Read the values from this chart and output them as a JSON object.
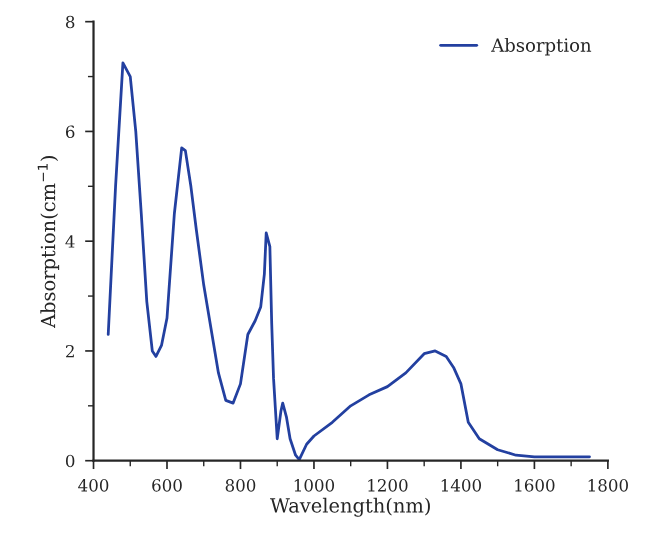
{
  "chart_data": {
    "type": "line",
    "xlabel": "Wavelength(nm)",
    "ylabel": "Absorption(cm$^{−1}$)",
    "xlim": [
      400,
      1800
    ],
    "xticks": [
      400,
      600,
      800,
      1000,
      1200,
      1400,
      1600,
      1800
    ],
    "ylim": [
      0,
      8
    ],
    "yticks": [
      0,
      2,
      4,
      6,
      8
    ],
    "grid": false,
    "legend": "top right",
    "marker": "none",
    "line_style": "solid",
    "series": [
      {
        "name": "Absorption",
        "color": "#2340a0",
        "x": [
          440,
          460,
          480,
          500,
          515,
          530,
          545,
          560,
          570,
          585,
          600,
          620,
          640,
          650,
          665,
          680,
          700,
          720,
          740,
          760,
          780,
          800,
          820,
          840,
          855,
          865,
          870,
          880,
          885,
          890,
          900,
          910,
          915,
          925,
          935,
          950,
          960,
          980,
          1000,
          1050,
          1100,
          1150,
          1200,
          1250,
          1300,
          1330,
          1360,
          1380,
          1400,
          1420,
          1450,
          1500,
          1550,
          1600,
          1650,
          1700,
          1750
        ],
        "values": [
          2.3,
          5.0,
          7.25,
          7.0,
          6.0,
          4.5,
          2.9,
          2.0,
          1.9,
          2.1,
          2.6,
          4.5,
          5.7,
          5.65,
          5.0,
          4.2,
          3.2,
          2.4,
          1.6,
          1.1,
          1.05,
          1.4,
          2.3,
          2.55,
          2.8,
          3.4,
          4.15,
          3.9,
          2.5,
          1.5,
          0.4,
          0.9,
          1.05,
          0.8,
          0.4,
          0.1,
          0.02,
          0.3,
          0.45,
          0.7,
          1.0,
          1.2,
          1.35,
          1.6,
          1.95,
          2.0,
          1.9,
          1.7,
          1.4,
          0.7,
          0.4,
          0.2,
          0.1,
          0.07,
          0.07,
          0.07,
          0.07
        ]
      }
    ]
  }
}
